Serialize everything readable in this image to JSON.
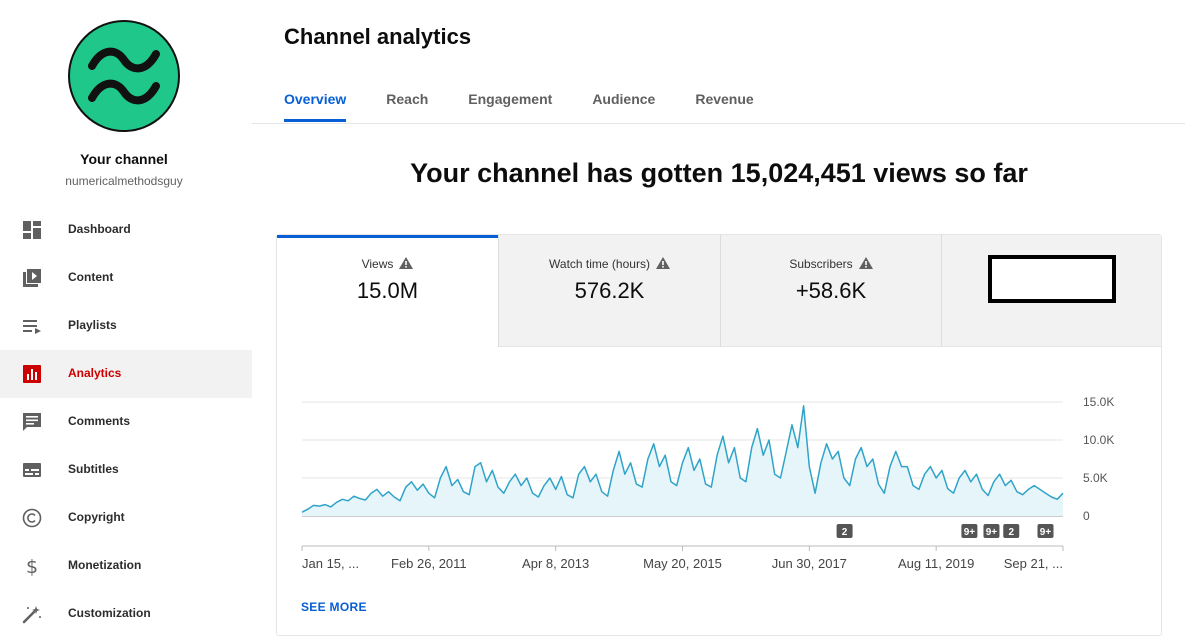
{
  "sidebar": {
    "channel_label": "Your channel",
    "channel_handle": "numericalmethodsguy",
    "items": [
      {
        "label": "Dashboard",
        "icon": "dashboard-icon"
      },
      {
        "label": "Content",
        "icon": "content-icon"
      },
      {
        "label": "Playlists",
        "icon": "playlists-icon"
      },
      {
        "label": "Analytics",
        "icon": "analytics-icon",
        "active": true
      },
      {
        "label": "Comments",
        "icon": "comments-icon"
      },
      {
        "label": "Subtitles",
        "icon": "subtitles-icon"
      },
      {
        "label": "Copyright",
        "icon": "copyright-icon"
      },
      {
        "label": "Monetization",
        "icon": "monetization-icon"
      },
      {
        "label": "Customization",
        "icon": "customization-icon"
      }
    ],
    "accent_color": "#cc0000"
  },
  "header": {
    "title": "Channel analytics",
    "tabs": [
      "Overview",
      "Reach",
      "Engagement",
      "Audience",
      "Revenue"
    ],
    "active_tab": "Overview"
  },
  "headline": "Your channel has gotten 15,024,451 views so far",
  "metrics": [
    {
      "label": "Views",
      "value": "15.0M",
      "active": true
    },
    {
      "label": "Watch time (hours)",
      "value": "576.2K"
    },
    {
      "label": "Subscribers",
      "value": "+58.6K"
    }
  ],
  "chart_data": {
    "type": "area",
    "series": [
      {
        "values": [
          500,
          900,
          1400,
          1300,
          1500,
          1200,
          1800,
          2200,
          2000,
          2600,
          2300,
          2100,
          3000,
          3500,
          2600,
          3200,
          2500,
          2000,
          3800,
          4500,
          3400,
          4200,
          3000,
          2400,
          5000,
          6500,
          4000,
          4800,
          3200,
          2800,
          6500,
          7000,
          4500,
          6000,
          3800,
          3000,
          4500,
          5500,
          4000,
          5000,
          3000,
          2500,
          4000,
          5000,
          3500,
          5200,
          2800,
          2400,
          5500,
          6500,
          4500,
          5500,
          3200,
          2600,
          6000,
          8500,
          5500,
          7000,
          4200,
          3800,
          7500,
          9500,
          6500,
          8000,
          4500,
          4000,
          7000,
          9000,
          6000,
          7500,
          4200,
          3800,
          8000,
          10500,
          7000,
          9000,
          5000,
          4500,
          9000,
          11500,
          8000,
          10000,
          5500,
          5000,
          8500,
          12000,
          9000,
          14500,
          6500,
          3000,
          7000,
          9500,
          7500,
          8500,
          5000,
          4000,
          7500,
          9000,
          6500,
          7500,
          4200,
          3000,
          6500,
          8500,
          6500,
          6500,
          4000,
          3500,
          5500,
          6500,
          5000,
          6000,
          3600,
          3000,
          5000,
          6000,
          4500,
          5500,
          3500,
          2700,
          4500,
          5500,
          4000,
          4700,
          3200,
          2800,
          3500,
          4000,
          3500,
          3000,
          2500,
          2200,
          3000
        ]
      }
    ],
    "x_ticks": [
      "Jan 15, ...",
      "Feb 26, 2011",
      "Apr 8, 2013",
      "May 20, 2015",
      "Jun 30, 2017",
      "Aug 11, 2019",
      "Sep 21, ..."
    ],
    "y_ticks": [
      "15.0K",
      "10.0K",
      "5.0K",
      "0"
    ],
    "ylim": [
      0,
      15000
    ],
    "grid": true,
    "markers": [
      {
        "label": "2",
        "x_frac": 0.713
      },
      {
        "label": "9+",
        "x_frac": 0.877
      },
      {
        "label": "9+",
        "x_frac": 0.906
      },
      {
        "label": "2",
        "x_frac": 0.932
      },
      {
        "label": "9+",
        "x_frac": 0.977
      }
    ],
    "line_color": "#2fa4c8",
    "fill_color": "#e6f5fa"
  },
  "see_more": "SEE MORE",
  "brand_blue": "#065fd4"
}
